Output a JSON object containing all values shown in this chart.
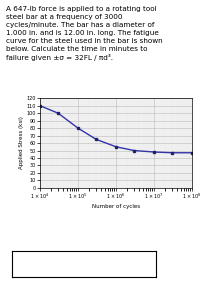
{
  "xlabel": "Number of cycles",
  "ylabel": "Applied Stress (ksi)",
  "ylim": [
    0,
    120
  ],
  "yticks": [
    0,
    10,
    20,
    30,
    40,
    50,
    60,
    70,
    80,
    90,
    100,
    110,
    120
  ],
  "curve_x": [
    10000.0,
    30000.0,
    100000.0,
    300000.0,
    1000000.0,
    3000000.0,
    10000000.0,
    30000000.0,
    100000000.0
  ],
  "curve_y": [
    110,
    100,
    80,
    65,
    55,
    50,
    48,
    47,
    47
  ],
  "curve_color": "#3333aa",
  "marker_color": "#222266",
  "bg_color": "#f0f0f0",
  "fig_width": 2.0,
  "fig_height": 2.89,
  "dpi": 100,
  "text_lines": [
    "A 647-lb force is applied to a rotating tool",
    "steel bar at a frequency of 3000",
    "cycles/minute. The bar has a diameter of",
    "1.000 in. and is 12.00 in. long. The fatigue",
    "curve for the steel used in the bar is shown",
    "below. Calculate the time in minutes to",
    "failure given ±σ = 32FL / πd³."
  ]
}
